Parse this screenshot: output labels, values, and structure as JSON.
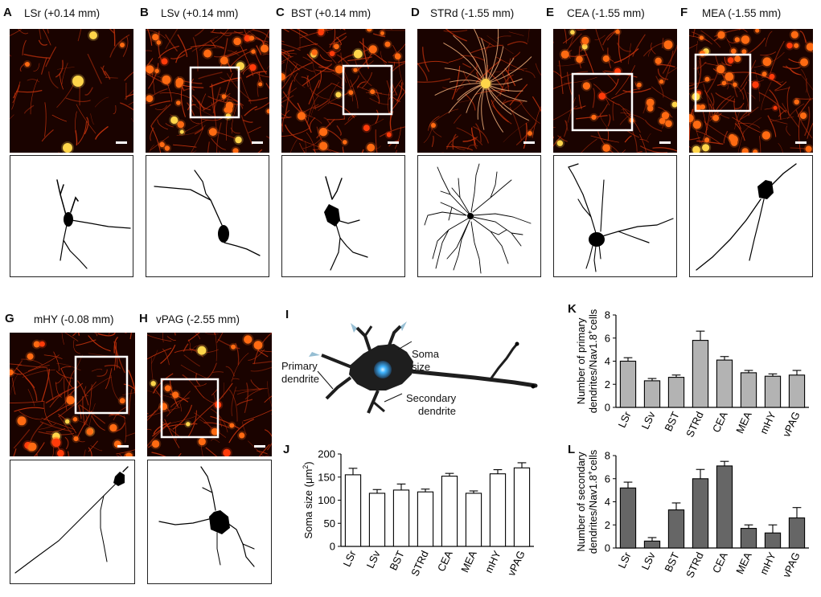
{
  "panels": [
    {
      "letter": "A",
      "title": "LSr (+0.14 mm)"
    },
    {
      "letter": "B",
      "title": "LSv (+0.14 mm)"
    },
    {
      "letter": "C",
      "title": "BST (+0.14 mm)"
    },
    {
      "letter": "D",
      "title": "STRd (-1.55 mm)"
    },
    {
      "letter": "E",
      "title": "CEA (-1.55 mm)"
    },
    {
      "letter": "F",
      "title": "MEA (-1.55 mm)"
    },
    {
      "letter": "G",
      "title": "mHY (-0.08 mm)"
    },
    {
      "letter": "H",
      "title": "vPAG (-2.55 mm)"
    }
  ],
  "schematic": {
    "letter": "I",
    "labels": {
      "primary": [
        "Primary",
        "dendrite"
      ],
      "soma": [
        "Soma",
        "size"
      ],
      "secondary": [
        "Secondary",
        "dendrite"
      ]
    }
  },
  "colors": {
    "micro_bg": "#1a0300",
    "fiber": "#c4320c",
    "cell": "#ff6a12",
    "bright": "#ffd54a",
    "bar_K": "#b3b3b3",
    "bar_L": "#666666",
    "bar_J": "#ffffff",
    "soma_glow": "#3fb4ff"
  },
  "chart_data": [
    {
      "panel": "J",
      "type": "bar",
      "categories": [
        "LSr",
        "LSv",
        "BST",
        "STRd",
        "CEA",
        "MEA",
        "mHY",
        "vPAG"
      ],
      "values": [
        155,
        115,
        122,
        118,
        152,
        115,
        157,
        170
      ],
      "errors": [
        14,
        8,
        13,
        6,
        6,
        5,
        9,
        11
      ],
      "ylabel_parts": [
        "Soma size (",
        "μm",
        "2",
        ")"
      ],
      "ylim": [
        0,
        200
      ],
      "yticks": [
        "0",
        "50",
        "100",
        "150",
        "200"
      ]
    },
    {
      "panel": "K",
      "type": "bar",
      "categories": [
        "LSr",
        "LSv",
        "BST",
        "STRd",
        "CEA",
        "MEA",
        "mHY",
        "vPAG"
      ],
      "values": [
        4.0,
        2.3,
        2.6,
        5.8,
        4.1,
        3.0,
        2.7,
        2.8
      ],
      "errors": [
        0.3,
        0.2,
        0.2,
        0.8,
        0.3,
        0.2,
        0.2,
        0.4
      ],
      "ylabel_parts": [
        "Number of primary",
        "dendrites/Nav1.8",
        "+",
        "cells"
      ],
      "ylim": [
        0,
        8
      ],
      "yticks": [
        "0",
        "2",
        "4",
        "6",
        "8"
      ]
    },
    {
      "panel": "L",
      "type": "bar",
      "categories": [
        "LSr",
        "LSv",
        "BST",
        "STRd",
        "CEA",
        "MEA",
        "mHY",
        "vPAG"
      ],
      "values": [
        5.2,
        0.6,
        3.3,
        6.0,
        7.1,
        1.7,
        1.3,
        2.6
      ],
      "errors": [
        0.5,
        0.3,
        0.6,
        0.8,
        0.4,
        0.3,
        0.7,
        0.9
      ],
      "ylabel_parts": [
        "Number of secondary",
        "dendrites/Nav1.8",
        "+",
        "cells"
      ],
      "ylim": [
        0,
        8
      ],
      "yticks": [
        "0",
        "2",
        "4",
        "6",
        "8"
      ]
    }
  ]
}
